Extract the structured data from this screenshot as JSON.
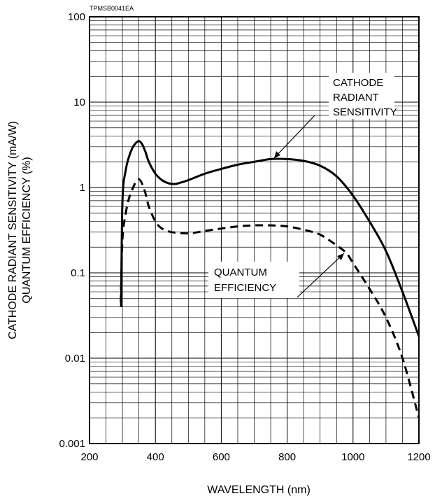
{
  "figure_code": "TPMSB0041EA",
  "chart_data": {
    "type": "line",
    "xlabel": "WAVELENGTH (nm)",
    "ylabel_lines": [
      "CATHODE RADIANT SENSITIVITY (mA/W)",
      "QUANTUM EFFICIENCY (%)"
    ],
    "xlim": [
      200,
      1200
    ],
    "ylim": [
      0.001,
      100
    ],
    "yscale": "log",
    "grid": true,
    "x_ticks": [
      200,
      400,
      600,
      800,
      1000,
      1200
    ],
    "x_tick_labels": [
      "200",
      "400",
      "600",
      "800",
      "1000",
      "1200"
    ],
    "y_ticks": [
      0.001,
      0.01,
      0.1,
      1,
      10,
      100
    ],
    "y_tick_labels": [
      "0.001",
      "0.01",
      "0.1",
      "1",
      "10",
      "100"
    ],
    "series": [
      {
        "name": "CATHODE RADIANT SENSITIVITY",
        "label_lines": [
          "CATHODE",
          "RADIANT",
          "SENSITIVITY"
        ],
        "style": "solid",
        "x": [
          296,
          300,
          310,
          320,
          330,
          340,
          350,
          360,
          370,
          380,
          400,
          420,
          440,
          460,
          480,
          500,
          550,
          600,
          650,
          700,
          750,
          800,
          850,
          900,
          950,
          1000,
          1050,
          1100,
          1150,
          1200
        ],
        "y": [
          0.04,
          0.7,
          1.6,
          2.3,
          2.9,
          3.3,
          3.5,
          3.2,
          2.6,
          2.0,
          1.45,
          1.22,
          1.12,
          1.1,
          1.15,
          1.22,
          1.45,
          1.65,
          1.85,
          2.0,
          2.15,
          2.15,
          2.05,
          1.8,
          1.35,
          0.8,
          0.4,
          0.18,
          0.06,
          0.018
        ]
      },
      {
        "name": "QUANTUM EFFICIENCY",
        "label_lines": [
          "QUANTUM",
          "EFFICIENCY"
        ],
        "style": "dashed",
        "x": [
          295,
          300,
          310,
          320,
          330,
          340,
          350,
          360,
          370,
          380,
          400,
          420,
          450,
          500,
          550,
          600,
          650,
          700,
          750,
          800,
          850,
          900,
          950,
          980,
          1000,
          1050,
          1100,
          1150,
          1200
        ],
        "y": [
          0.045,
          0.25,
          0.5,
          0.75,
          0.95,
          1.15,
          1.25,
          1.1,
          0.85,
          0.6,
          0.4,
          0.33,
          0.3,
          0.29,
          0.31,
          0.33,
          0.35,
          0.36,
          0.36,
          0.35,
          0.32,
          0.28,
          0.21,
          0.17,
          0.13,
          0.065,
          0.03,
          0.01,
          0.002
        ]
      }
    ]
  }
}
